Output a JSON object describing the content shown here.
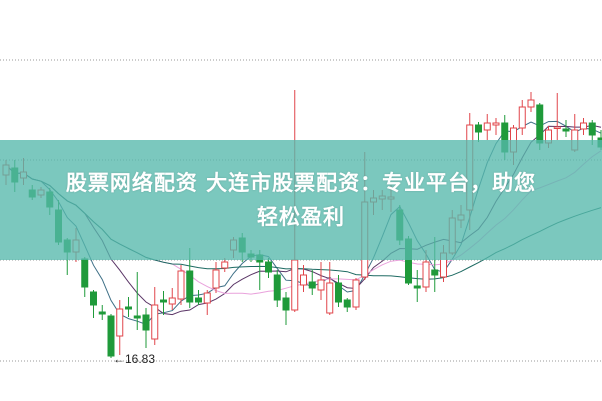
{
  "banner": {
    "line1": "股票网络配资 大连市股票配资：专业平台，助您",
    "line2": "轻松盈利",
    "color": "#56b8ac"
  },
  "chart_data": {
    "type": "candlestick",
    "ylim": [
      15.97,
      23.99
    ],
    "grid": true,
    "grid_levels": [
      22.79,
      20.79,
      18.79,
      16.77
    ],
    "annotation": {
      "text": "←16.83",
      "value": 16.83
    },
    "colors": {
      "up": "#e0454a",
      "down": "#1f9a3a",
      "ma5": "#3d6f86",
      "ma10": "#5a3566",
      "ma20": "#e9a2dc",
      "ma60": "#1d6a62",
      "grid": "#9a9a9a"
    },
    "moving_averages": [
      5,
      10,
      20,
      40
    ],
    "candles": [
      [
        20.49,
        20.69,
        20.79,
        20.29
      ],
      [
        20.63,
        20.35,
        20.79,
        20.15
      ],
      [
        20.43,
        20.55,
        20.83,
        20.29
      ],
      [
        20.19,
        20.05,
        20.29,
        19.99
      ],
      [
        20.09,
        20.19,
        20.25,
        20.03
      ],
      [
        20.15,
        19.85,
        20.23,
        19.69
      ],
      [
        19.79,
        19.15,
        19.99,
        19.09
      ],
      [
        19.19,
        18.95,
        19.23,
        18.49
      ],
      [
        18.95,
        19.19,
        19.43,
        18.75
      ],
      [
        18.81,
        18.25,
        18.85,
        18.05
      ],
      [
        18.15,
        17.89,
        18.19,
        17.63
      ],
      [
        17.75,
        17.71,
        17.89,
        17.59
      ],
      [
        17.67,
        16.87,
        17.71,
        16.83
      ],
      [
        17.27,
        17.81,
        17.99,
        16.89
      ],
      [
        17.85,
        17.81,
        18.05,
        17.65
      ],
      [
        17.67,
        17.63,
        18.55,
        17.39
      ],
      [
        17.69,
        17.39,
        17.83,
        17.03
      ],
      [
        17.21,
        17.89,
        18.25,
        17.09
      ],
      [
        17.99,
        17.95,
        18.17,
        17.69
      ],
      [
        17.91,
        18.03,
        18.23,
        17.79
      ],
      [
        18.01,
        18.57,
        18.69,
        17.89
      ],
      [
        18.57,
        17.95,
        19.03,
        17.83
      ],
      [
        18.03,
        17.95,
        18.19,
        17.89
      ],
      [
        17.93,
        18.13,
        18.19,
        17.69
      ],
      [
        18.23,
        18.59,
        18.75,
        18.13
      ],
      [
        18.63,
        18.75,
        18.83,
        18.55
      ],
      [
        18.99,
        19.19,
        19.25,
        18.83
      ],
      [
        19.23,
        18.95,
        19.33,
        18.75
      ],
      [
        18.91,
        18.85,
        18.99,
        18.75
      ],
      [
        18.89,
        18.75,
        18.99,
        18.19
      ],
      [
        18.75,
        18.55,
        18.83,
        18.43
      ],
      [
        18.49,
        17.99,
        18.59,
        17.85
      ],
      [
        18.03,
        17.79,
        18.15,
        17.49
      ],
      [
        17.79,
        18.79,
        22.19,
        17.75
      ],
      [
        18.29,
        18.49,
        18.69,
        18.15
      ],
      [
        18.35,
        18.23,
        18.59,
        18.09
      ],
      [
        18.19,
        18.39,
        18.75,
        17.99
      ],
      [
        17.73,
        18.33,
        18.75,
        17.69
      ],
      [
        18.33,
        17.95,
        18.49,
        17.85
      ],
      [
        17.99,
        17.85,
        18.03,
        17.75
      ],
      [
        17.85,
        18.39,
        18.43,
        17.79
      ],
      [
        18.45,
        19.95,
        20.95,
        18.39
      ],
      [
        19.95,
        20.03,
        20.19,
        19.69
      ],
      [
        20.01,
        20.07,
        20.19,
        19.79
      ],
      [
        20.01,
        20.05,
        20.29,
        19.75
      ],
      [
        19.79,
        19.19,
        19.89,
        19.09
      ],
      [
        19.21,
        18.33,
        19.27,
        18.29
      ],
      [
        18.27,
        18.23,
        18.59,
        17.95
      ],
      [
        18.25,
        18.75,
        18.99,
        18.15
      ],
      [
        18.59,
        18.49,
        19.25,
        18.15
      ],
      [
        18.45,
        18.93,
        19.09,
        18.35
      ],
      [
        18.93,
        19.63,
        19.79,
        18.89
      ],
      [
        19.59,
        19.69,
        19.89,
        19.43
      ],
      [
        19.79,
        21.49,
        21.73,
        19.39
      ],
      [
        21.49,
        21.35,
        21.55,
        21.15
      ],
      [
        21.39,
        21.53,
        21.71,
        21.19
      ],
      [
        21.49,
        21.53,
        21.63,
        21.29
      ],
      [
        21.53,
        20.95,
        21.69,
        20.79
      ],
      [
        20.95,
        21.43,
        21.49,
        20.69
      ],
      [
        21.43,
        21.85,
        21.99,
        21.29
      ],
      [
        21.85,
        21.99,
        22.15,
        21.75
      ],
      [
        21.89,
        21.13,
        21.93,
        20.99
      ],
      [
        21.13,
        21.39,
        21.47,
        21.03
      ],
      [
        21.43,
        21.45,
        22.13,
        21.19
      ],
      [
        21.41,
        21.37,
        21.59,
        21.25
      ],
      [
        20.99,
        21.39,
        21.71,
        20.95
      ],
      [
        21.41,
        21.53,
        21.63,
        21.29
      ],
      [
        21.53,
        21.29,
        21.59,
        21.09
      ],
      [
        21.23,
        21.05,
        21.39,
        20.99
      ]
    ]
  }
}
